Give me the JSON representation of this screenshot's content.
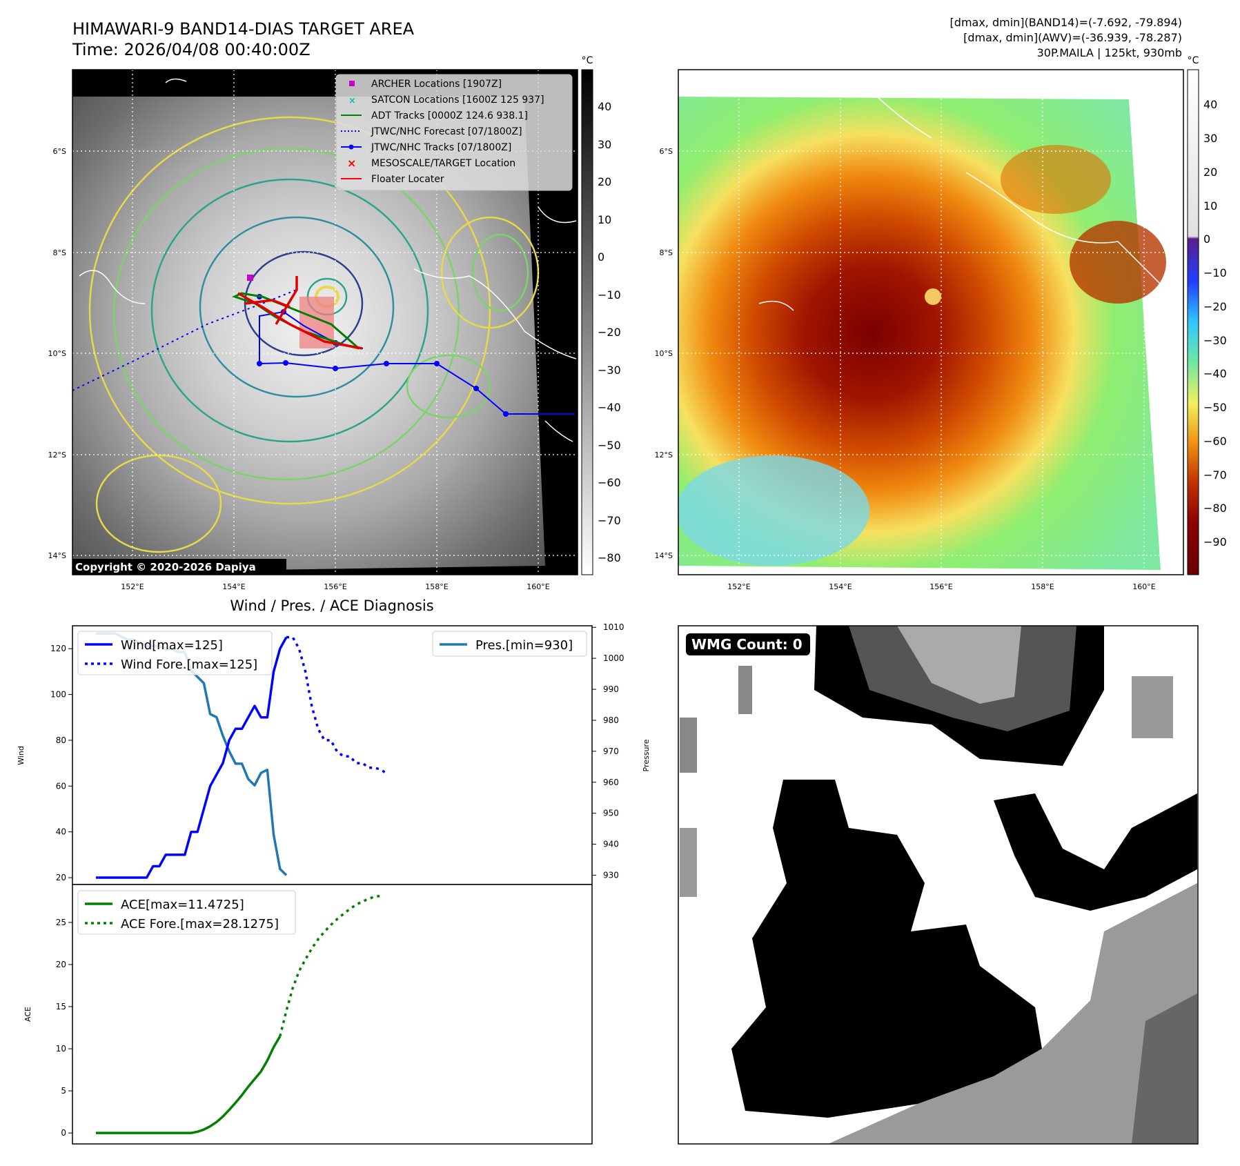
{
  "header": {
    "title": "HIMAWARI-9 BAND14-DIAS TARGET AREA",
    "time": "Time: 2026/04/08 00:40:00Z",
    "info_line1": "[dmax, dmin](BAND14)=(-7.692, -79.894)",
    "info_line2": "[dmax, dmin](AWV)=(-36.939, -78.287)",
    "info_line3": "30P.MAILA | 125kt, 930mb"
  },
  "maps": {
    "lat_ticks": [
      "6°S",
      "8°S",
      "10°S",
      "12°S",
      "14°S"
    ],
    "lon_ticks": [
      "152°E",
      "154°E",
      "156°E",
      "158°E",
      "160°E"
    ],
    "copyright": "Copyright © 2020-2026 Dapiya",
    "legend": [
      {
        "label": "ARCHER Locations [1907Z]",
        "marker": "square",
        "color": "#cc00cc"
      },
      {
        "label": "SATCON Locations [1600Z 125 937]",
        "marker": "x",
        "color": "#00bfbf"
      },
      {
        "label": "ADT Tracks [0000Z 124.6 938.1]",
        "marker": "line",
        "color": "#008000"
      },
      {
        "label": "JTWC/NHC Forecast [07/1800Z]",
        "marker": "dotted",
        "color": "#0000ff"
      },
      {
        "label": "JTWC/NHC Tracks [07/1800Z]",
        "marker": "dotline",
        "color": "#0000ff"
      },
      {
        "label": "MESOSCALE/TARGET Location",
        "marker": "x",
        "color": "#ff0000"
      },
      {
        "label": "Floater Locater",
        "marker": "line",
        "color": "#ff0000"
      }
    ],
    "colorbar_left": {
      "unit": "°C",
      "ticks": [
        "40",
        "30",
        "20",
        "10",
        "0",
        "−10",
        "−20",
        "−30",
        "−40",
        "−50",
        "−60",
        "−70",
        "−80"
      ]
    },
    "colorbar_right": {
      "unit": "°C",
      "ticks": [
        "40",
        "30",
        "20",
        "10",
        "0",
        "−10",
        "−20",
        "−30",
        "−40",
        "−50",
        "−60",
        "−70",
        "−80",
        "−90"
      ]
    }
  },
  "wmg": {
    "label": "WMG Count: 0"
  },
  "colors": {
    "wind": "#0000ff",
    "pressure": "#1f77b4",
    "ace": "#008000"
  },
  "chart_data": [
    {
      "type": "line",
      "title": "Wind / Pres. / ACE Diagnosis",
      "ylabel": "Wind",
      "y2label": "Pressure",
      "ylim": [
        17,
        130
      ],
      "y2lim": [
        927,
        1010.5
      ],
      "yticks": [
        20,
        40,
        60,
        80,
        100,
        120
      ],
      "y2ticks": [
        930,
        940,
        950,
        960,
        970,
        980,
        990,
        1000,
        1010
      ],
      "series": [
        {
          "name": "Wind[max=125]",
          "axis": "left",
          "style": "solid",
          "values": [
            20,
            20,
            20,
            20,
            20,
            20,
            20,
            20,
            20,
            25,
            25,
            30,
            30,
            30,
            30,
            40,
            40,
            50,
            60,
            65,
            70,
            80,
            85,
            85,
            90,
            95,
            90,
            90,
            110,
            120,
            125
          ]
        },
        {
          "name": "Wind Fore.[max=125]",
          "axis": "left",
          "style": "dotted",
          "offset": 30,
          "values": [
            125,
            125,
            120,
            110,
            95,
            85,
            80,
            80,
            75,
            73,
            73,
            70,
            70,
            68,
            68,
            67,
            65
          ]
        },
        {
          "name": "Pres.[min=930]",
          "axis": "right",
          "style": "solid",
          "values": [
            1008,
            1008,
            1008,
            1008,
            1007,
            1006,
            1006,
            1005,
            1004,
            1004,
            1004,
            1003,
            1003,
            1002,
            1002,
            996,
            994,
            992,
            982,
            981,
            975,
            970,
            966,
            966,
            961,
            959,
            963,
            964,
            943,
            932,
            930
          ]
        }
      ]
    },
    {
      "type": "line",
      "ylabel": "ACE",
      "ylim": [
        -1.3,
        29.5
      ],
      "yticks": [
        0,
        5,
        10,
        15,
        20,
        25
      ],
      "series": [
        {
          "name": "ACE[max=11.4725]",
          "style": "solid",
          "values": [
            0,
            0,
            0,
            0,
            0,
            0,
            0,
            0,
            0,
            0,
            0,
            0,
            0,
            0,
            0,
            0,
            0.15,
            0.4,
            0.8,
            1.3,
            1.95,
            2.75,
            3.6,
            4.5,
            5.5,
            6.4,
            7.3,
            8.6,
            10.2,
            11.4725
          ]
        },
        {
          "name": "ACE Fore.[max=28.1275]",
          "style": "dotted",
          "offset": 29,
          "values": [
            11.4725,
            14.5,
            17.2,
            19.2,
            20.6,
            21.9,
            23,
            23.9,
            24.7,
            25.4,
            26,
            26.6,
            27.1,
            27.5,
            27.8,
            28.1,
            28.1275
          ]
        }
      ]
    }
  ]
}
